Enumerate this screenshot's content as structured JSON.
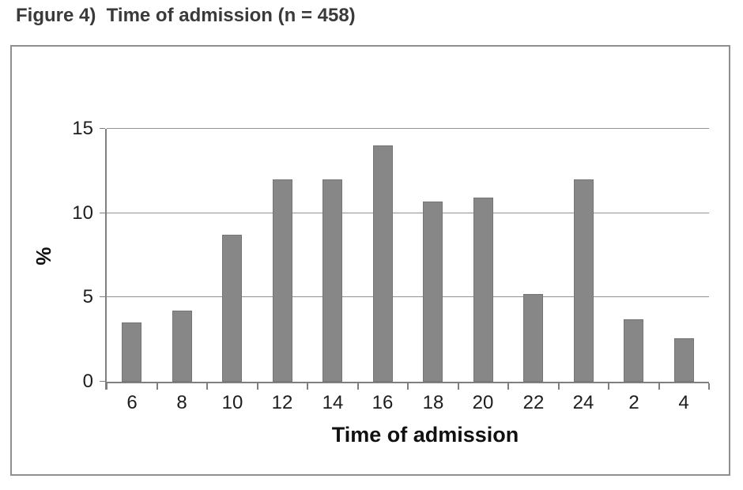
{
  "figure": {
    "title": "Figure 4)  Time of admission (n = 458)"
  },
  "chart_data": {
    "type": "bar",
    "title": "Figure 4)  Time of admission (n = 458)",
    "categories": [
      "6",
      "8",
      "10",
      "12",
      "14",
      "16",
      "18",
      "20",
      "22",
      "24",
      "2",
      "4"
    ],
    "values": [
      3.5,
      4.2,
      8.7,
      12,
      12,
      14,
      10.7,
      10.9,
      5.2,
      12,
      3.7,
      2.6
    ],
    "xlabel": "Time of admission",
    "ylabel": "%",
    "ylim": [
      0,
      15
    ],
    "yticks": [
      0,
      5,
      10,
      15
    ],
    "grid": true,
    "legend": "none",
    "colors": {
      "bar_fill": "#878787",
      "bar_edge": "#757575",
      "axis_line": "#7f7f7f",
      "gridline": "#929292",
      "frame_border": "#8f8f8f",
      "tick_text": "#1d1d1d",
      "title_text": "#3a3a3a"
    }
  }
}
